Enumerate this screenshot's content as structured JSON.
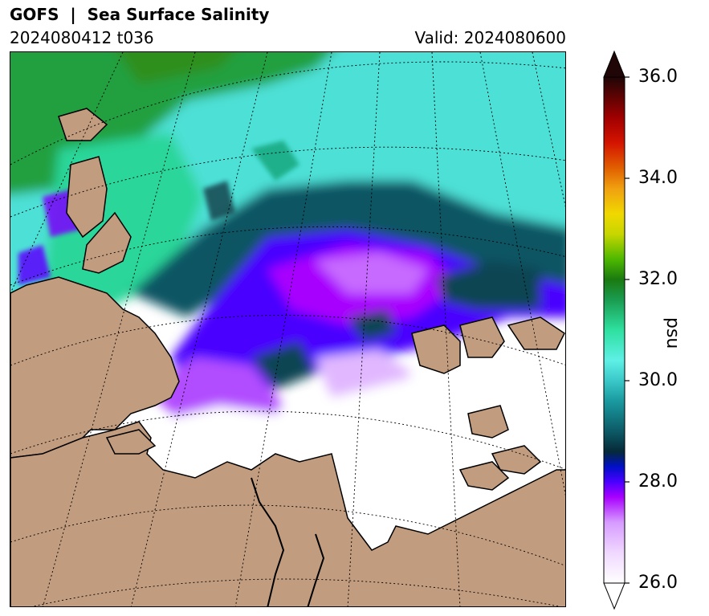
{
  "header": {
    "title": "GOFS  |  Sea Surface Salinity",
    "run": "2024080412 t036",
    "valid": "Valid: 2024080600"
  },
  "colorbar": {
    "unit": "psu",
    "ticks": [
      {
        "value": 36,
        "label": "36.0"
      },
      {
        "value": 34,
        "label": "34.0"
      },
      {
        "value": 32,
        "label": "32.0"
      },
      {
        "value": 30,
        "label": "30.0"
      },
      {
        "value": 28,
        "label": "28.0"
      },
      {
        "value": 26,
        "label": "26.0"
      }
    ],
    "range": [
      26,
      36
    ],
    "extend": "both"
  },
  "colors": {
    "land": "#c19c7f",
    "fresh": "#ffffff",
    "violet": "#a400ff",
    "blue": "#4a00ff",
    "darkteal": "#0c4550",
    "cyan": "#55e0d8",
    "green": "#22a030",
    "red": "#d41400",
    "maxcap": "#200606"
  }
}
